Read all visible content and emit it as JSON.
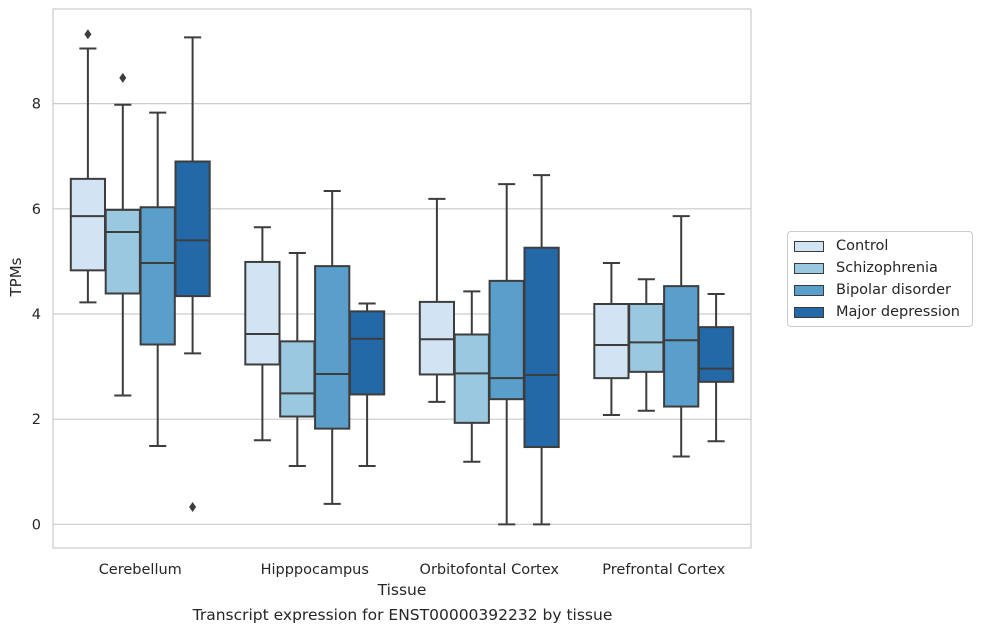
{
  "chart_data": {
    "type": "box",
    "title": "",
    "caption": "Transcript expression for ENST00000392232 by tissue",
    "xlabel": "Tissue",
    "ylabel": "TPMs",
    "categories": [
      "Cerebellum",
      "Hipppocampus",
      "Orbitofontal Cortex",
      "Prefrontal Cortex"
    ],
    "ylim": [
      -0.45,
      9.8
    ],
    "yticks": [
      "0",
      "2",
      "4",
      "6",
      "8"
    ],
    "grid": "horizontal",
    "legend_position": "right",
    "series": [
      {
        "name": "Control",
        "color": "#d2e3f3",
        "boxes": [
          {
            "min": 4.22,
            "q1": 4.83,
            "median": 5.86,
            "q3": 6.57,
            "max": 9.05,
            "outliers": [
              9.32
            ]
          },
          {
            "min": 1.6,
            "q1": 3.04,
            "median": 3.62,
            "q3": 4.99,
            "max": 5.65,
            "outliers": []
          },
          {
            "min": 2.33,
            "q1": 2.85,
            "median": 3.52,
            "q3": 4.23,
            "max": 6.19,
            "outliers": []
          },
          {
            "min": 2.08,
            "q1": 2.78,
            "median": 3.41,
            "q3": 4.19,
            "max": 4.97,
            "outliers": []
          }
        ]
      },
      {
        "name": "Schizophrenia",
        "color": "#9ac8e0",
        "boxes": [
          {
            "min": 2.45,
            "q1": 4.39,
            "median": 5.56,
            "q3": 5.98,
            "max": 7.98,
            "outliers": [
              8.49
            ]
          },
          {
            "min": 1.11,
            "q1": 2.05,
            "median": 2.49,
            "q3": 3.48,
            "max": 5.16,
            "outliers": []
          },
          {
            "min": 1.19,
            "q1": 1.93,
            "median": 2.87,
            "q3": 3.61,
            "max": 4.43,
            "outliers": []
          },
          {
            "min": 2.16,
            "q1": 2.9,
            "median": 3.46,
            "q3": 4.19,
            "max": 4.66,
            "outliers": []
          }
        ]
      },
      {
        "name": "Bipolar disorder",
        "color": "#5a9fcc",
        "boxes": [
          {
            "min": 1.49,
            "q1": 3.42,
            "median": 4.97,
            "q3": 6.03,
            "max": 7.83,
            "outliers": []
          },
          {
            "min": 0.39,
            "q1": 1.82,
            "median": 2.86,
            "q3": 4.91,
            "max": 6.34,
            "outliers": []
          },
          {
            "min": 0.0,
            "q1": 2.38,
            "median": 2.78,
            "q3": 4.63,
            "max": 6.47,
            "outliers": []
          },
          {
            "min": 1.29,
            "q1": 2.24,
            "median": 3.5,
            "q3": 4.53,
            "max": 5.86,
            "outliers": []
          }
        ]
      },
      {
        "name": "Major depression",
        "color": "#2469a7",
        "boxes": [
          {
            "min": 3.25,
            "q1": 4.34,
            "median": 5.4,
            "q3": 6.9,
            "max": 9.26,
            "outliers": [
              0.33
            ]
          },
          {
            "min": 1.11,
            "q1": 2.47,
            "median": 3.53,
            "q3": 4.05,
            "max": 4.2,
            "outliers": []
          },
          {
            "min": 0.0,
            "q1": 1.47,
            "median": 2.84,
            "q3": 5.26,
            "max": 6.64,
            "outliers": []
          },
          {
            "min": 1.58,
            "q1": 2.71,
            "median": 2.96,
            "q3": 3.75,
            "max": 4.38,
            "outliers": []
          }
        ]
      }
    ]
  }
}
